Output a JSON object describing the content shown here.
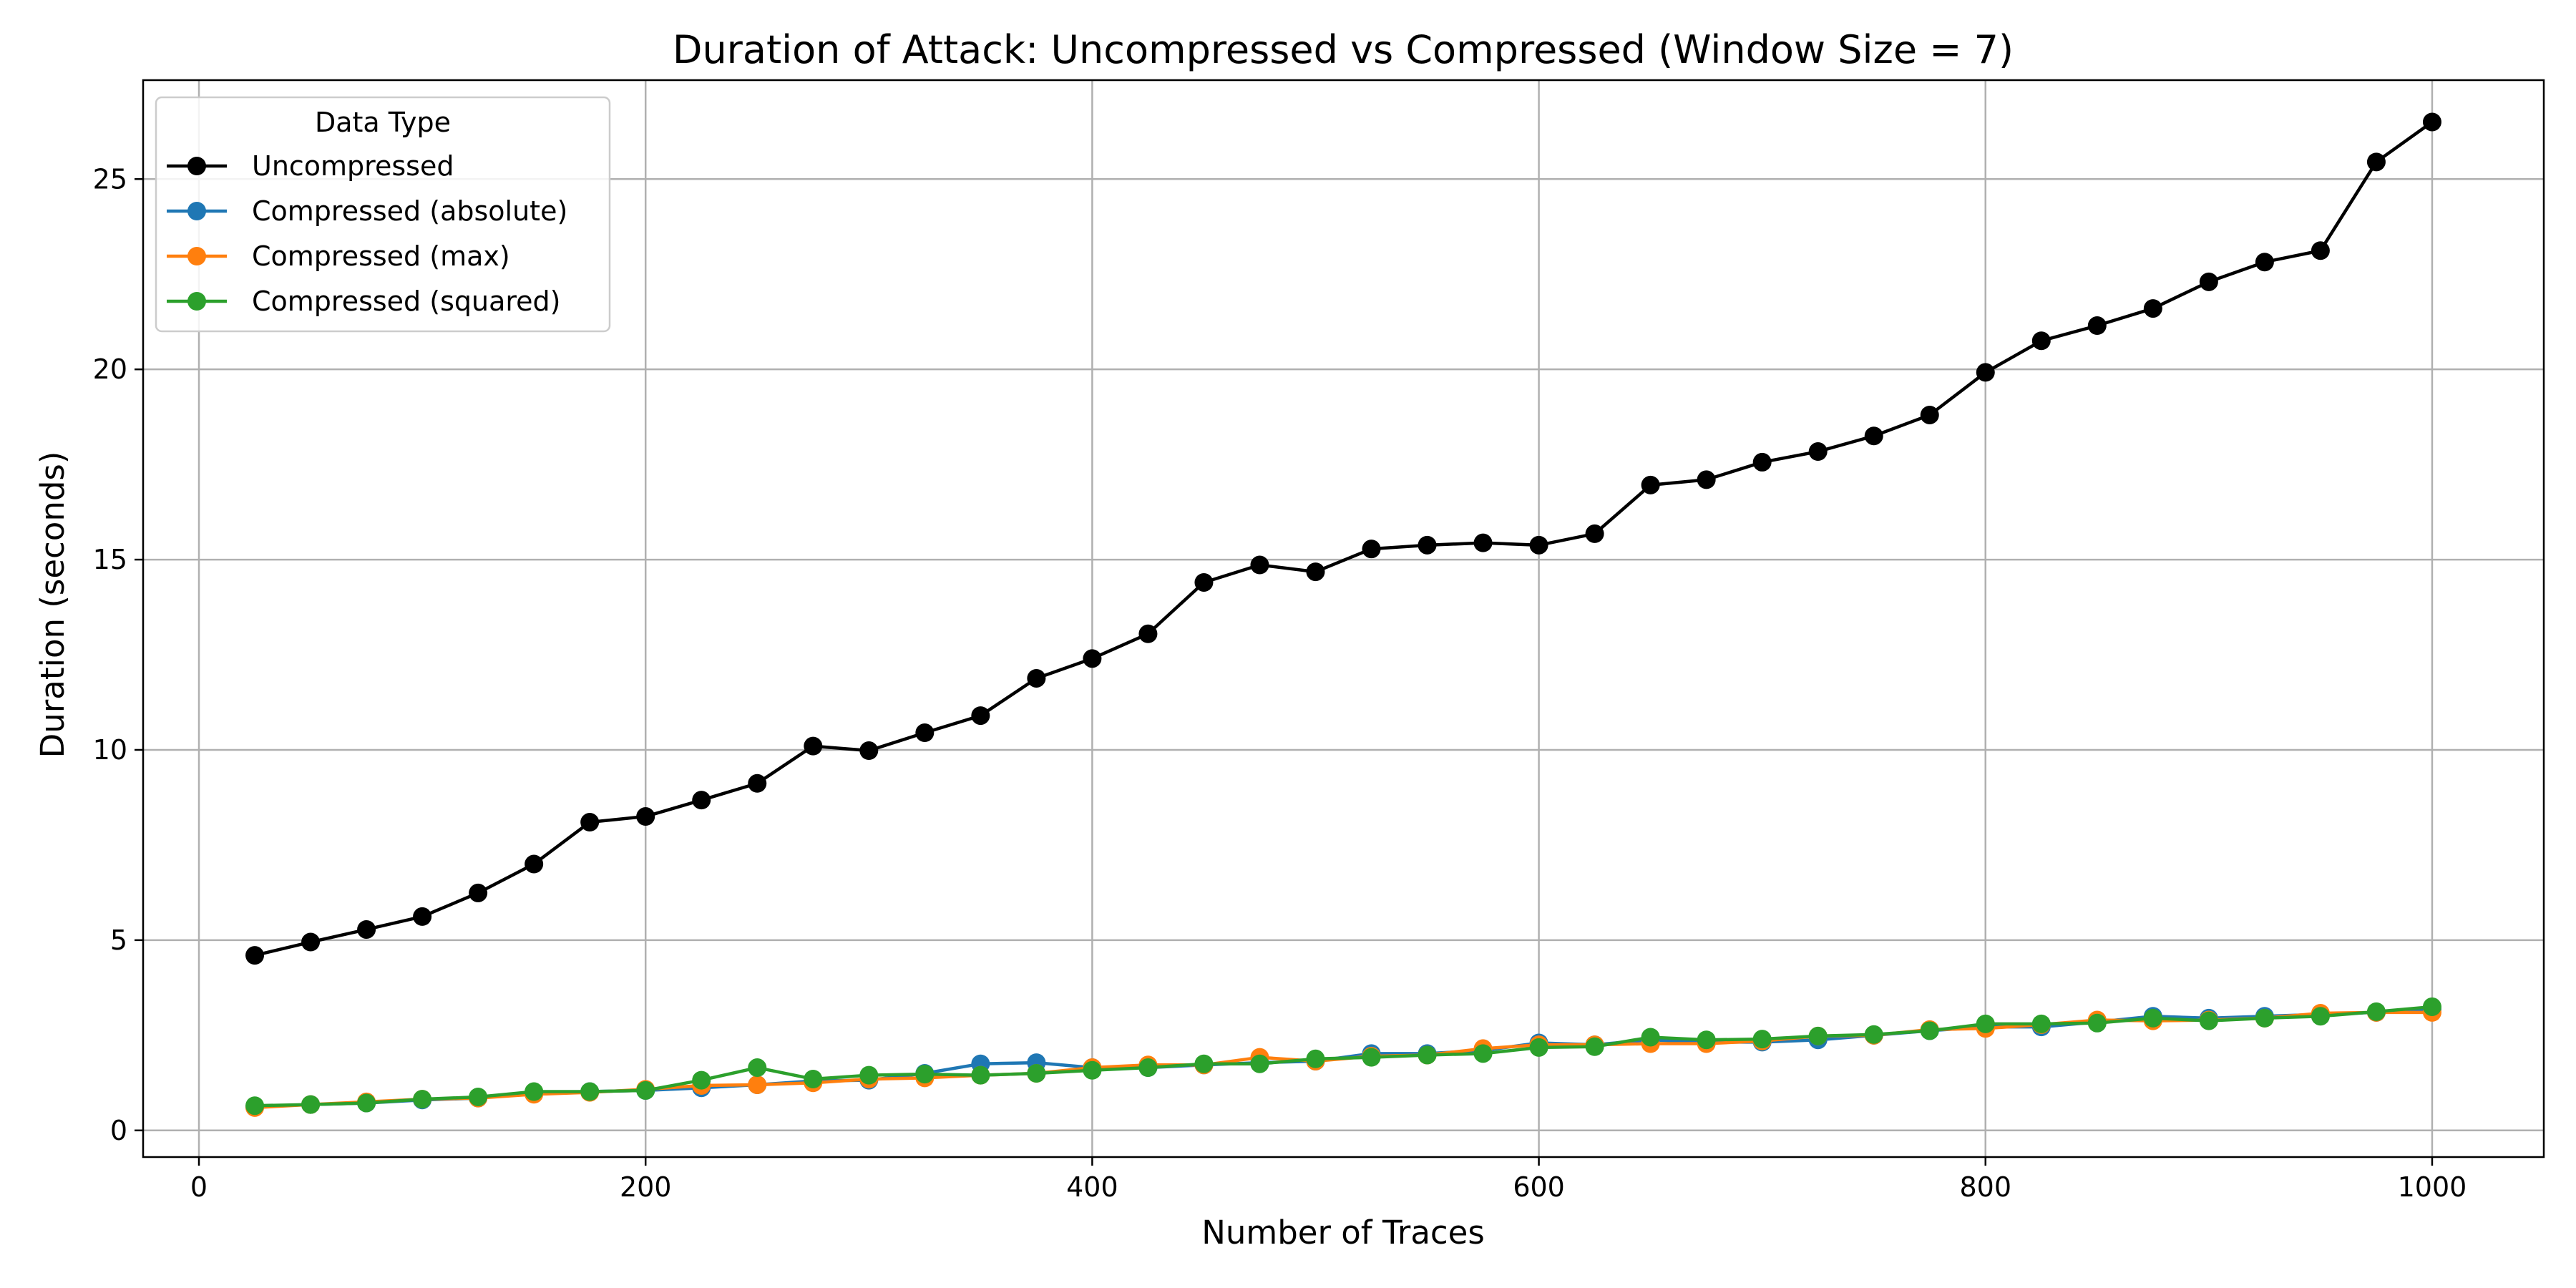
{
  "chart_data": {
    "type": "line",
    "title": "Duration of Attack: Uncompressed vs Compressed (Window Size = 7)",
    "xlabel": "Number of Traces",
    "ylabel": "Duration (seconds)",
    "xlim": [
      -25,
      1050
    ],
    "ylim": [
      -0.7,
      27.6
    ],
    "xticks": [
      0,
      200,
      400,
      600,
      800,
      1000
    ],
    "yticks": [
      0,
      5,
      10,
      15,
      20,
      25
    ],
    "grid": true,
    "legend": {
      "title": "Data Type",
      "placement": "top-left"
    },
    "x": [
      25,
      50,
      75,
      100,
      125,
      150,
      175,
      200,
      225,
      250,
      275,
      300,
      325,
      350,
      375,
      400,
      425,
      450,
      475,
      500,
      525,
      550,
      575,
      600,
      625,
      650,
      675,
      700,
      725,
      750,
      775,
      800,
      825,
      850,
      875,
      900,
      925,
      950,
      975,
      1000
    ],
    "series": [
      {
        "name": "Uncompressed",
        "color": "#000000",
        "values": [
          4.6,
          4.95,
          5.28,
          5.62,
          6.24,
          7.0,
          8.1,
          8.25,
          8.68,
          9.12,
          10.1,
          9.98,
          10.45,
          10.9,
          11.88,
          12.4,
          13.05,
          14.4,
          14.86,
          14.68,
          15.28,
          15.38,
          15.44,
          15.38,
          15.68,
          16.96,
          17.1,
          17.56,
          17.84,
          18.25,
          18.8,
          19.92,
          20.75,
          21.15,
          21.6,
          22.3,
          22.82,
          23.12,
          25.45,
          26.5
        ]
      },
      {
        "name": "Compressed (absolute)",
        "color": "#1f77b4",
        "values": [
          0.62,
          0.68,
          0.72,
          0.8,
          0.85,
          1.0,
          1.02,
          1.05,
          1.12,
          1.2,
          1.3,
          1.32,
          1.5,
          1.75,
          1.78,
          1.65,
          1.65,
          1.72,
          1.78,
          1.82,
          2.02,
          2.02,
          2.1,
          2.3,
          2.25,
          2.38,
          2.32,
          2.32,
          2.38,
          2.5,
          2.62,
          2.72,
          2.72,
          2.85,
          3.0,
          2.95,
          3.0,
          3.05,
          3.1,
          3.18
        ]
      },
      {
        "name": "Compressed (max)",
        "color": "#ff7f0e",
        "values": [
          0.6,
          0.68,
          0.75,
          0.82,
          0.85,
          0.95,
          1.0,
          1.08,
          1.18,
          1.2,
          1.25,
          1.35,
          1.38,
          1.45,
          1.5,
          1.65,
          1.72,
          1.72,
          1.92,
          1.82,
          1.95,
          1.98,
          2.15,
          2.25,
          2.25,
          2.28,
          2.28,
          2.35,
          2.48,
          2.5,
          2.65,
          2.68,
          2.78,
          2.9,
          2.88,
          2.9,
          2.95,
          3.08,
          3.1,
          3.1
        ]
      },
      {
        "name": "Compressed (squared)",
        "color": "#2ca02c",
        "values": [
          0.65,
          0.68,
          0.72,
          0.82,
          0.88,
          1.02,
          1.02,
          1.05,
          1.32,
          1.65,
          1.35,
          1.45,
          1.48,
          1.45,
          1.5,
          1.58,
          1.65,
          1.75,
          1.75,
          1.88,
          1.92,
          1.98,
          2.02,
          2.18,
          2.2,
          2.45,
          2.38,
          2.4,
          2.48,
          2.52,
          2.62,
          2.8,
          2.8,
          2.82,
          2.95,
          2.88,
          2.95,
          3.0,
          3.12,
          3.25
        ]
      }
    ]
  }
}
